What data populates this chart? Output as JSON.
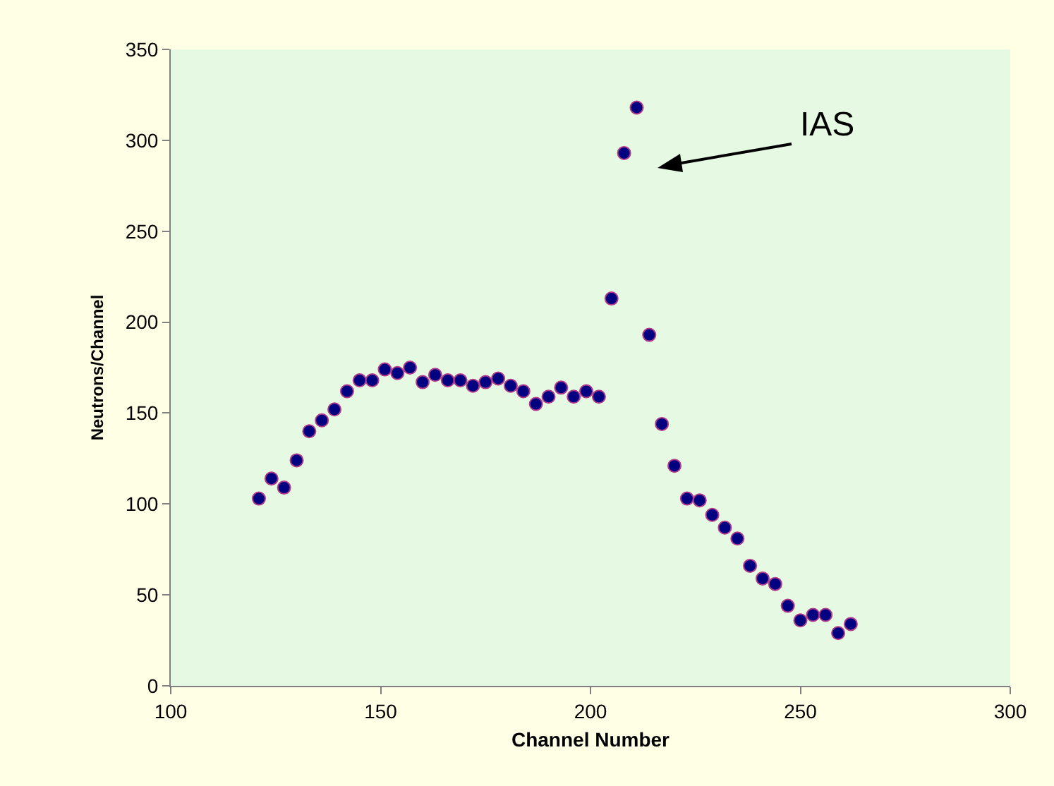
{
  "chart_data": {
    "type": "scatter",
    "xlabel": "Channel Number",
    "ylabel": "Neutrons/Channel",
    "x": [
      121,
      124,
      127,
      130,
      133,
      136,
      139,
      142,
      145,
      148,
      151,
      154,
      157,
      160,
      163,
      166,
      169,
      172,
      175,
      178,
      181,
      184,
      187,
      190,
      193,
      196,
      199,
      202,
      205,
      208,
      211,
      214,
      217,
      220,
      223,
      226,
      229,
      232,
      235,
      238,
      241,
      244,
      247,
      250,
      253,
      256,
      259,
      262
    ],
    "values": [
      103,
      114,
      109,
      124,
      140,
      146,
      152,
      162,
      168,
      168,
      174,
      172,
      175,
      167,
      171,
      168,
      168,
      165,
      167,
      169,
      165,
      162,
      155,
      159,
      164,
      159,
      162,
      159,
      213,
      293,
      318,
      193,
      144,
      121,
      103,
      102,
      94,
      87,
      81,
      66,
      59,
      56,
      44,
      36,
      39,
      39,
      29,
      34
    ],
    "color": "#000080",
    "marker": "circle",
    "xlim": [
      100,
      300
    ],
    "xticks": [
      100,
      150,
      200,
      250,
      300
    ],
    "ylim": [
      0,
      350
    ],
    "yticks": [
      0,
      50,
      100,
      150,
      200,
      250,
      300,
      350
    ],
    "grid": false,
    "legend": false,
    "annotations": [
      "IAS"
    ]
  }
}
